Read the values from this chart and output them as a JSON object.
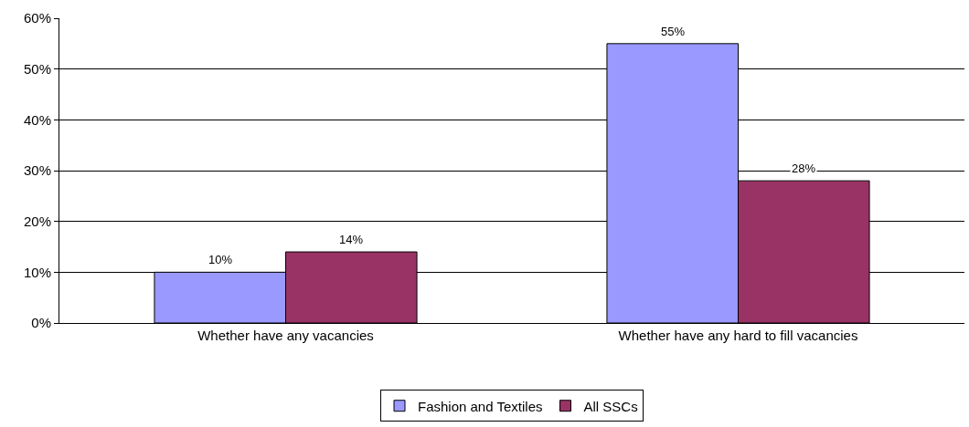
{
  "chart_data": {
    "type": "bar",
    "categories": [
      "Whether have any vacancies",
      "Whether have any hard to fill vacancies"
    ],
    "series": [
      {
        "name": "Fashion and Textiles",
        "color": "#9999ff",
        "values": [
          10,
          55
        ],
        "value_labels": [
          "10%",
          "55%"
        ]
      },
      {
        "name": "All SSCs",
        "color": "#993366",
        "values": [
          14,
          28
        ],
        "value_labels": [
          "14%",
          "28%"
        ]
      }
    ],
    "ylim": [
      0,
      60
    ],
    "yticks": [
      {
        "value": 0,
        "label": "0%"
      },
      {
        "value": 10,
        "label": "10%"
      },
      {
        "value": 20,
        "label": "20%"
      },
      {
        "value": 30,
        "label": "30%"
      },
      {
        "value": 40,
        "label": "40%"
      },
      {
        "value": 50,
        "label": "50%"
      },
      {
        "value": 60,
        "label": "60%"
      }
    ],
    "grid": "y",
    "legend": "bottom"
  }
}
